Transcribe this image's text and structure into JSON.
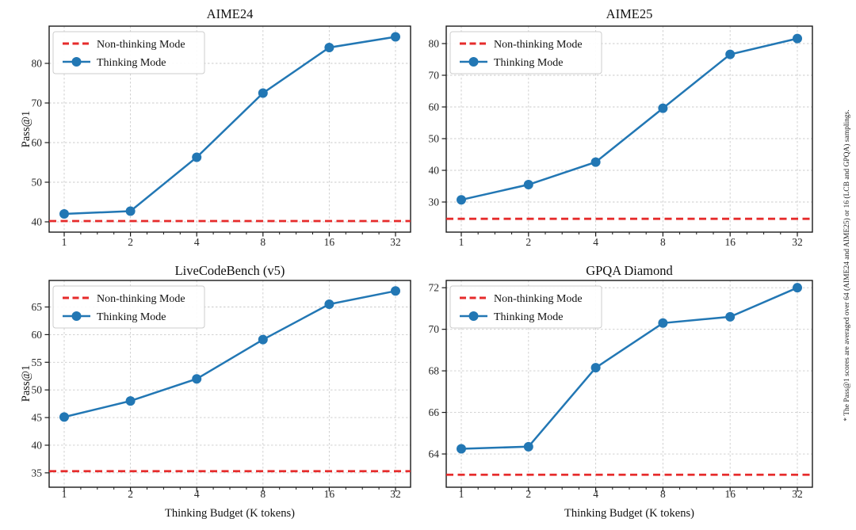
{
  "figure": {
    "background": "#ffffff",
    "footnote": "* The Pass@1 scores are averaged over 64 (AIME24 and AIME25) or 16 (LCB and GPQA) samplings.",
    "shared_xlabel": "Thinking Budget (K tokens)",
    "shared_ylabel": "Pass@1"
  },
  "legend": {
    "non_thinking_label": "Non-thinking Mode",
    "thinking_label": "Thinking Mode",
    "position": "upper left"
  },
  "colors": {
    "thinking": "#2277b4",
    "non_thinking": "#e62b2b",
    "grid": "#cbcbcb",
    "axis": "#1a1a1a",
    "text": "#111111"
  },
  "chart_data": [
    {
      "type": "line",
      "title": "AIME24",
      "xlabel": "",
      "ylabel": "Pass@1",
      "x_scale": "log2",
      "x": [
        1,
        2,
        4,
        8,
        16,
        32
      ],
      "xticks": [
        1,
        2,
        4,
        8,
        16,
        32
      ],
      "yticks": [
        40,
        50,
        60,
        70,
        80
      ],
      "ylim": [
        37.4,
        89.4
      ],
      "grid": true,
      "legend_position": "upper left",
      "series": [
        {
          "name": "Thinking Mode",
          "style": "solid-markers",
          "values": [
            42.0,
            42.7,
            56.3,
            72.5,
            84.0,
            86.7
          ]
        },
        {
          "name": "Non-thinking Mode",
          "style": "dashed-hline",
          "value": 40.2
        }
      ]
    },
    {
      "type": "line",
      "title": "AIME25",
      "xlabel": "",
      "ylabel": "",
      "x_scale": "log2",
      "x": [
        1,
        2,
        4,
        8,
        16,
        32
      ],
      "xticks": [
        1,
        2,
        4,
        8,
        16,
        32
      ],
      "yticks": [
        30,
        40,
        50,
        60,
        70,
        80
      ],
      "ylim": [
        20.5,
        85.5
      ],
      "grid": true,
      "legend_position": "upper left",
      "series": [
        {
          "name": "Thinking Mode",
          "style": "solid-markers",
          "values": [
            30.7,
            35.5,
            42.6,
            59.6,
            76.6,
            81.6
          ]
        },
        {
          "name": "Non-thinking Mode",
          "style": "dashed-hline",
          "value": 24.7
        }
      ]
    },
    {
      "type": "line",
      "title": "LiveCodeBench (v5)",
      "xlabel": "Thinking Budget (K tokens)",
      "ylabel": "Pass@1",
      "x_scale": "log2",
      "x": [
        1,
        2,
        4,
        8,
        16,
        32
      ],
      "xticks": [
        1,
        2,
        4,
        8,
        16,
        32
      ],
      "yticks": [
        35,
        40,
        45,
        50,
        55,
        60,
        65
      ],
      "ylim": [
        32.4,
        69.8
      ],
      "grid": true,
      "legend_position": "upper left",
      "series": [
        {
          "name": "Thinking Mode",
          "style": "solid-markers",
          "values": [
            45.1,
            48.0,
            52.0,
            59.1,
            65.5,
            67.9
          ]
        },
        {
          "name": "Non-thinking Mode",
          "style": "dashed-hline",
          "value": 35.3
        }
      ]
    },
    {
      "type": "line",
      "title": "GPQA Diamond",
      "xlabel": "Thinking Budget (K tokens)",
      "ylabel": "",
      "x_scale": "log2",
      "x": [
        1,
        2,
        4,
        8,
        16,
        32
      ],
      "xticks": [
        1,
        2,
        4,
        8,
        16,
        32
      ],
      "yticks": [
        64,
        66,
        68,
        70,
        72
      ],
      "ylim": [
        62.4,
        72.35
      ],
      "grid": true,
      "legend_position": "upper left",
      "series": [
        {
          "name": "Thinking Mode",
          "style": "solid-markers",
          "values": [
            64.25,
            64.35,
            68.15,
            70.3,
            70.6,
            72.0
          ]
        },
        {
          "name": "Non-thinking Mode",
          "style": "dashed-hline",
          "value": 63.0
        }
      ]
    }
  ]
}
